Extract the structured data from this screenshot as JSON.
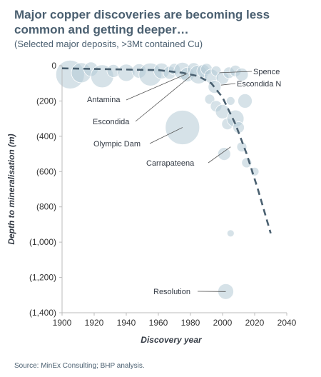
{
  "title": "Major copper discoveries are becoming less common and getting deeper…",
  "subtitle": "(Selected major deposits, >3Mt contained Cu)",
  "source": "Source: MinEx Consulting; BHP analysis.",
  "colors": {
    "bubble": "#b5cbd6",
    "trend": "#4a6070",
    "leader": "#555555",
    "axis": "#bbbbbb"
  },
  "chart_data": {
    "type": "scatter",
    "title": "Major copper discoveries are becoming less common and getting deeper…",
    "subtitle": "(Selected major deposits, >3Mt contained Cu)",
    "xlabel": "Discovery year",
    "ylabel": "Depth to mineralisation (m)",
    "xlim": [
      1900,
      2040
    ],
    "ylim": [
      -1400,
      0
    ],
    "x_ticks": [
      1900,
      1920,
      1940,
      1960,
      1980,
      2000,
      2020,
      2040
    ],
    "x_tick_labels": [
      "1900",
      "1920",
      "1940",
      "1960",
      "1980",
      "2000",
      "2020",
      "2040"
    ],
    "y_ticks": [
      0,
      -200,
      -400,
      -600,
      -800,
      -1000,
      -1200,
      -1400
    ],
    "y_tick_labels": [
      "0",
      "(200)",
      "(400)",
      "(600)",
      "(800)",
      "(1,000)",
      "(1,200)",
      "(1,400)"
    ],
    "grid": false,
    "points": [
      {
        "x": 1905,
        "y": -50,
        "r": 20
      },
      {
        "x": 1912,
        "y": -40,
        "r": 14
      },
      {
        "x": 1918,
        "y": -20,
        "r": 10
      },
      {
        "x": 1925,
        "y": -60,
        "r": 16
      },
      {
        "x": 1932,
        "y": -30,
        "r": 9
      },
      {
        "x": 1940,
        "y": -40,
        "r": 12
      },
      {
        "x": 1948,
        "y": -30,
        "r": 10
      },
      {
        "x": 1955,
        "y": -50,
        "r": 16
      },
      {
        "x": 1962,
        "y": -30,
        "r": 11
      },
      {
        "x": 1967,
        "y": -40,
        "r": 9
      },
      {
        "x": 1970,
        "y": -20,
        "r": 8
      },
      {
        "x": 1975,
        "y": -30,
        "r": 12
      },
      {
        "x": 1978,
        "y": -50,
        "r": 10
      },
      {
        "x": 1982,
        "y": -20,
        "r": 9
      },
      {
        "x": 1985,
        "y": -50,
        "r": 13
      },
      {
        "x": 1988,
        "y": -30,
        "r": 9
      },
      {
        "x": 1990,
        "y": -20,
        "r": 8
      },
      {
        "x": 1993,
        "y": -60,
        "r": 10
      },
      {
        "x": 1996,
        "y": -30,
        "r": 7
      },
      {
        "x": 2000,
        "y": -70,
        "r": 9
      },
      {
        "x": 2004,
        "y": -40,
        "r": 8
      },
      {
        "x": 2008,
        "y": -30,
        "r": 8
      },
      {
        "x": 2012,
        "y": -50,
        "r": 9
      },
      {
        "x": 1995,
        "y": -120,
        "r": 9
      },
      {
        "x": 1992,
        "y": -190,
        "r": 7
      },
      {
        "x": 1996,
        "y": -230,
        "r": 8
      },
      {
        "x": 2000,
        "y": -260,
        "r": 10
      },
      {
        "x": 2003,
        "y": -330,
        "r": 8
      },
      {
        "x": 2005,
        "y": -200,
        "r": 6
      },
      {
        "x": 2008,
        "y": -300,
        "r": 12
      },
      {
        "x": 2010,
        "y": -350,
        "r": 8
      },
      {
        "x": 2014,
        "y": -200,
        "r": 10
      },
      {
        "x": 2012,
        "y": -460,
        "r": 7
      },
      {
        "x": 2015,
        "y": -550,
        "r": 7
      },
      {
        "x": 2020,
        "y": -600,
        "r": 6
      },
      {
        "x": 1975,
        "y": -350,
        "r": 24
      },
      {
        "x": 2001,
        "y": -500,
        "r": 9
      },
      {
        "x": 2005,
        "y": -950,
        "r": 5
      },
      {
        "x": 2002,
        "y": -1280,
        "r": 11
      }
    ],
    "trend": [
      [
        1900,
        -15
      ],
      [
        1960,
        -25
      ],
      [
        1975,
        -40
      ],
      [
        1985,
        -60
      ],
      [
        1993,
        -100
      ],
      [
        2000,
        -180
      ],
      [
        2008,
        -330
      ],
      [
        2015,
        -500
      ],
      [
        2022,
        -700
      ],
      [
        2030,
        -950
      ]
    ],
    "annotations": [
      {
        "label": "Spence",
        "x": 1998,
        "y": -40
      },
      {
        "label": "Escondida N",
        "x": 1999,
        "y": -110
      },
      {
        "label": "Antamina",
        "x": 1978,
        "y": -45
      },
      {
        "label": "Escondida",
        "x": 1980,
        "y": -60
      },
      {
        "label": "Olympic Dam",
        "x": 1975,
        "y": -350
      },
      {
        "label": "Carrapateena",
        "x": 2005,
        "y": -460
      },
      {
        "label": "Resolution",
        "x": 2002,
        "y": -1280
      }
    ]
  }
}
